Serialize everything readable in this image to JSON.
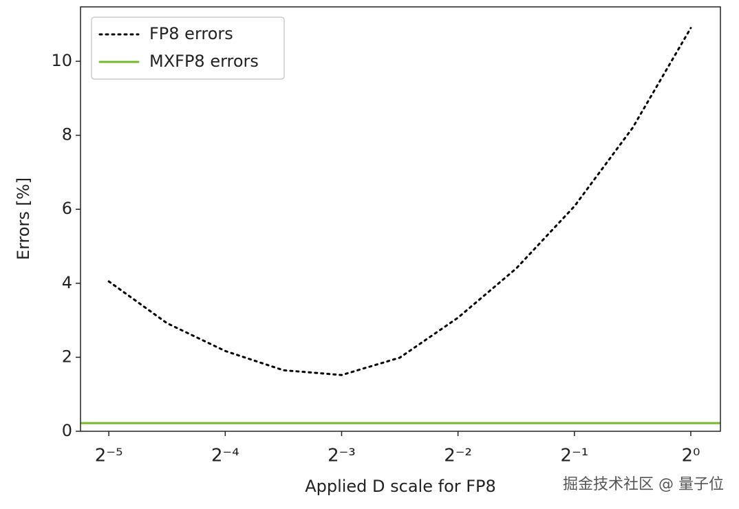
{
  "chart_data": {
    "type": "line",
    "xlabel": "Applied D scale for FP8",
    "ylabel": "Errors [%]",
    "x": [
      0.03125,
      0.0442,
      0.0625,
      0.0884,
      0.125,
      0.1768,
      0.25,
      0.3536,
      0.5,
      0.7071,
      1
    ],
    "series": [
      {
        "name": "FP8 errors",
        "color": "#000000",
        "style": "dotted",
        "values": [
          4.05,
          2.92,
          2.17,
          1.65,
          1.52,
          1.99,
          3.07,
          4.4,
          6.08,
          8.2,
          10.9
        ]
      },
      {
        "name": "MXFP8 errors",
        "color": "#76b82a",
        "style": "solid",
        "hline": 0.22
      }
    ],
    "xscale": "log2",
    "xlim": [
      0.0264,
      1.193
    ],
    "xticks": [
      {
        "value": 0.03125,
        "label": "2⁻⁵"
      },
      {
        "value": 0.0625,
        "label": "2⁻⁴"
      },
      {
        "value": 0.125,
        "label": "2⁻³"
      },
      {
        "value": 0.25,
        "label": "2⁻²"
      },
      {
        "value": 0.5,
        "label": "2⁻¹"
      },
      {
        "value": 1,
        "label": "2⁰"
      }
    ],
    "ylim": [
      0,
      11.47
    ],
    "yticks": [
      0,
      2,
      4,
      6,
      8,
      10
    ],
    "legend": "upper-left",
    "watermark": "掘金技术社区 @ 量子位"
  }
}
